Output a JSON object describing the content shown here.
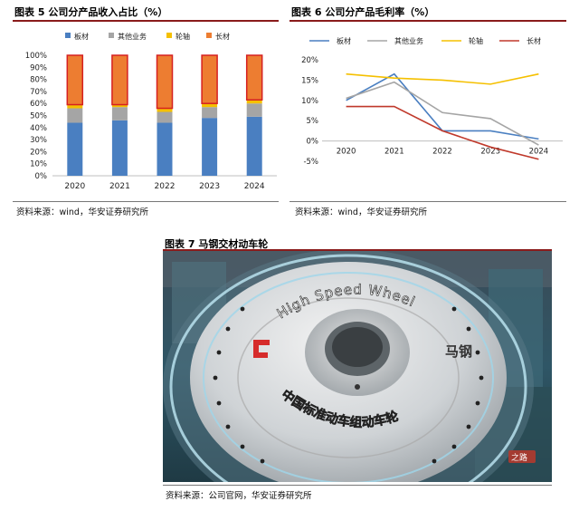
{
  "fig5": {
    "title": "图表 5 公司分产品收入占比（%）",
    "source": "资料来源：wind，华安证券研究所"
  },
  "fig6": {
    "title": "图表 6 公司分产品毛利率（%）",
    "source": "资料来源：wind，华安证券研究所"
  },
  "fig7": {
    "title": "图表 7  马钢交材动车轮",
    "source": "资料来源：公司官网，华安证券研究所",
    "wheel_text_top": "High Speed Wheel",
    "wheel_text_bottom": "中国标准动车组动车轮",
    "wheel_brand": "马钢",
    "watermark": "之路"
  },
  "chart_data": [
    {
      "type": "bar",
      "stacked": true,
      "categories": [
        "2020",
        "2021",
        "2022",
        "2023",
        "2024"
      ],
      "series": [
        {
          "name": "板材",
          "color": "#4a7fc1",
          "values": [
            44,
            46,
            44,
            48,
            49
          ]
        },
        {
          "name": "其他业务",
          "color": "#a5a5a5",
          "values": [
            12,
            11,
            9,
            9,
            11
          ]
        },
        {
          "name": "轮轴",
          "color": "#f5c000",
          "values": [
            3,
            2,
            3,
            3,
            3
          ]
        },
        {
          "name": "长材",
          "color": "#ed7d31",
          "values": [
            41,
            41,
            44,
            40,
            37
          ]
        }
      ],
      "yticks": [
        "0%",
        "10%",
        "20%",
        "30%",
        "40%",
        "50%",
        "60%",
        "70%",
        "80%",
        "90%",
        "100%"
      ],
      "ylim": [
        0,
        100
      ],
      "legend": "top"
    },
    {
      "type": "line",
      "categories": [
        "2020",
        "2021",
        "2022",
        "2023",
        "2024"
      ],
      "series": [
        {
          "name": "板材",
          "color": "#4a7fc1",
          "values": [
            10.0,
            16.5,
            2.5,
            2.5,
            0.5
          ]
        },
        {
          "name": "其他业务",
          "color": "#a5a5a5",
          "values": [
            10.5,
            14.5,
            7.0,
            5.5,
            -1.0
          ]
        },
        {
          "name": "轮轴",
          "color": "#f5c000",
          "values": [
            16.5,
            15.5,
            15.0,
            14.0,
            16.5
          ]
        },
        {
          "name": "长材",
          "color": "#c0392b",
          "values": [
            8.5,
            8.5,
            2.5,
            -1.5,
            -4.5
          ]
        }
      ],
      "yticks": [
        "-5%",
        "0%",
        "5%",
        "10%",
        "15%",
        "20%"
      ],
      "ylim": [
        -5,
        20
      ],
      "legend": "top"
    }
  ]
}
